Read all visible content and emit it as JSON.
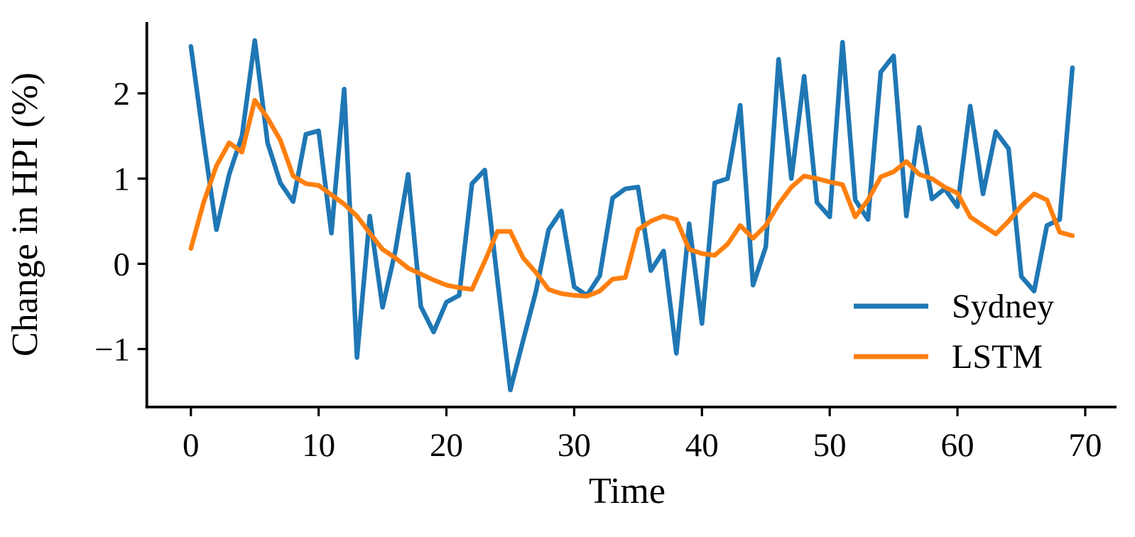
{
  "figure": {
    "background": "#ffffff",
    "axis_color": "#000000"
  },
  "chart_data": {
    "type": "line",
    "title": "",
    "xlabel": "Time",
    "ylabel": "Change in HPI (%)",
    "x": [
      0,
      1,
      2,
      3,
      4,
      5,
      6,
      7,
      8,
      9,
      10,
      11,
      12,
      13,
      14,
      15,
      16,
      17,
      18,
      19,
      20,
      21,
      22,
      23,
      24,
      25,
      26,
      27,
      28,
      29,
      30,
      31,
      32,
      33,
      34,
      35,
      36,
      37,
      38,
      39,
      40,
      41,
      42,
      43,
      44,
      45,
      46,
      47,
      48,
      49,
      50,
      51,
      52,
      53,
      54,
      55,
      56,
      57,
      58,
      59,
      60,
      61,
      62,
      63,
      64,
      65,
      66,
      67,
      68,
      69
    ],
    "series": [
      {
        "name": "Sydney",
        "color": "#1f77b4",
        "values": [
          2.55,
          1.45,
          0.4,
          1.05,
          1.5,
          2.62,
          1.42,
          0.95,
          0.73,
          1.52,
          1.56,
          0.36,
          2.05,
          -1.1,
          0.56,
          -0.51,
          0.15,
          1.05,
          -0.5,
          -0.8,
          -0.45,
          -0.37,
          0.94,
          1.1,
          -0.2,
          -1.48,
          -0.9,
          -0.33,
          0.4,
          0.62,
          -0.27,
          -0.37,
          -0.14,
          0.77,
          0.88,
          0.9,
          -0.08,
          0.15,
          -1.05,
          0.47,
          -0.7,
          0.95,
          1.0,
          1.86,
          -0.25,
          0.2,
          2.4,
          1.0,
          2.2,
          0.72,
          0.55,
          2.6,
          0.75,
          0.52,
          2.25,
          2.44,
          0.56,
          1.6,
          0.76,
          0.88,
          0.67,
          1.85,
          0.82,
          1.55,
          1.35,
          -0.15,
          -0.32,
          0.45,
          0.52,
          2.3
        ]
      },
      {
        "name": "LSTM",
        "color": "#ff7f0e",
        "values": [
          0.18,
          0.72,
          1.15,
          1.42,
          1.31,
          1.92,
          1.71,
          1.45,
          1.03,
          0.94,
          0.92,
          0.81,
          0.7,
          0.56,
          0.36,
          0.17,
          0.07,
          -0.05,
          -0.12,
          -0.19,
          -0.25,
          -0.28,
          -0.3,
          0.03,
          0.38,
          0.38,
          0.07,
          -0.1,
          -0.3,
          -0.35,
          -0.37,
          -0.38,
          -0.32,
          -0.18,
          -0.16,
          0.4,
          0.5,
          0.56,
          0.52,
          0.17,
          0.12,
          0.1,
          0.23,
          0.45,
          0.3,
          0.45,
          0.7,
          0.9,
          1.03,
          1.0,
          0.96,
          0.93,
          0.55,
          0.75,
          1.02,
          1.08,
          1.2,
          1.05,
          1.0,
          0.9,
          0.83,
          0.55,
          0.45,
          0.35,
          0.5,
          0.68,
          0.82,
          0.75,
          0.37,
          0.33
        ]
      }
    ],
    "xticks": [
      0,
      10,
      20,
      30,
      40,
      50,
      60,
      70
    ],
    "yticks": [
      -1,
      0,
      1,
      2
    ],
    "xlim": [
      -3.45,
      72.45
    ],
    "ylim": [
      -1.68,
      2.82
    ],
    "grid": false,
    "legend_position": "lower right",
    "legend_frame": false
  },
  "legend": {
    "sydney_label": "Sydney",
    "lstm_label": "LSTM"
  },
  "labels": {
    "xlabel": "Time",
    "ylabel": "Change in HPI (%)"
  }
}
